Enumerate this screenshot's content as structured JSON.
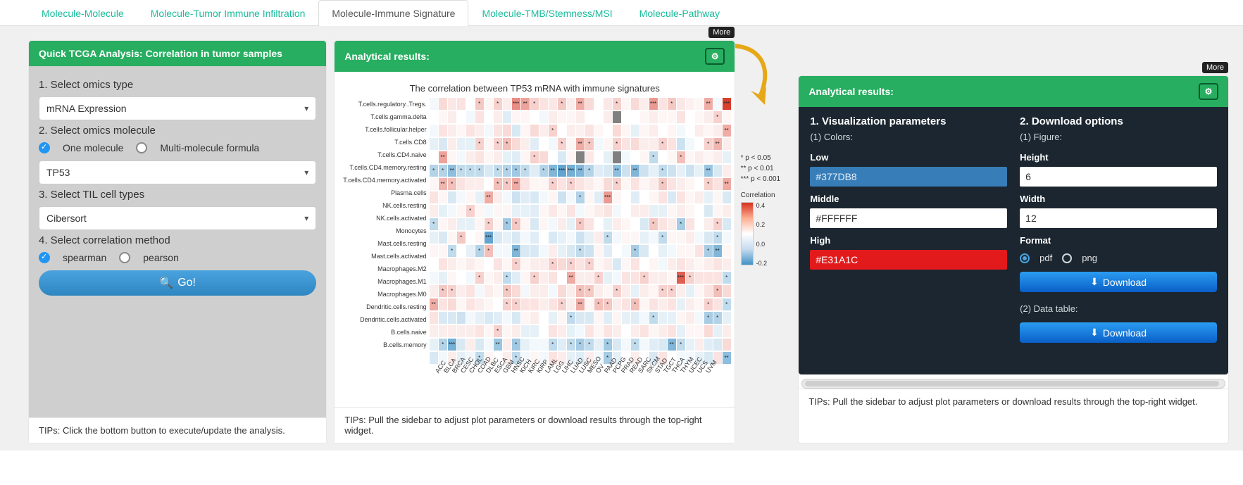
{
  "tabs": {
    "active_index": 2,
    "items": [
      {
        "label": "Molecule-Molecule"
      },
      {
        "label": "Molecule-Tumor Immune Infiltration"
      },
      {
        "label": "Molecule-Immune Signature"
      },
      {
        "label": "Molecule-TMB/Stemness/MSI"
      },
      {
        "label": "Molecule-Pathway"
      }
    ]
  },
  "left_panel": {
    "title": "Quick TCGA Analysis: Correlation in tumor samples",
    "step1_label": "1. Select omics type",
    "omics_type": "mRNA Expression",
    "step2_label": "2. Select omics molecule",
    "mol_radio": {
      "one": "One molecule",
      "multi": "Multi-molecule formula",
      "selected": "one"
    },
    "molecule": "TP53",
    "step3_label": "3. Select TIL cell types",
    "til": "Cibersort",
    "step4_label": "4. Select correlation method",
    "corr_radio": {
      "spearman": "spearman",
      "pearson": "pearson",
      "selected": "spearman"
    },
    "go": "Go!",
    "tip": "TIPs: Click the bottom button to execute/update the analysis."
  },
  "mid_panel": {
    "title": "Analytical results:",
    "more_badge": "More",
    "tip": "TIPs: Pull the sidebar to adjust plot parameters or download results through the top-right widget.",
    "heatmap": {
      "type": "heatmap",
      "title": "The correlation between TP53 mRNA with immune signatures",
      "rows": [
        "T.cells.regulatory..Tregs.",
        "T.cells.gamma.delta",
        "T.cells.follicular.helper",
        "T.cells.CD8",
        "T.cells.CD4.naive",
        "T.cells.CD4.memory.resting",
        "T.cells.CD4.memory.activated",
        "Plasma.cells",
        "NK.cells.resting",
        "NK.cells.activated",
        "Monocytes",
        "Mast.cells.resting",
        "Mast.cells.activated",
        "Macrophages.M2",
        "Macrophages.M1",
        "Macrophages.M0",
        "Dendritic.cells.resting",
        "Dendritic.cells.activated",
        "B.cells.naive",
        "B.cells.memory"
      ],
      "cols": [
        "ACC",
        "BLCA",
        "BRCA",
        "CESC",
        "CHOL",
        "COAD",
        "DLBC",
        "ESCA",
        "GBM",
        "HNSC",
        "KICH",
        "KIRC",
        "KIRP",
        "LAML",
        "LGG",
        "LIHC",
        "LUAD",
        "LUSC",
        "MESO",
        "OV",
        "PAAD",
        "PCPG",
        "PRAD",
        "READ",
        "SARC",
        "SKCM",
        "STAD",
        "TGCT",
        "THCA",
        "THYM",
        "UCEC",
        "UCS",
        "UVM"
      ],
      "values": [
        [
          -0.02,
          0.08,
          0.05,
          0.06,
          0.0,
          0.12,
          0.02,
          0.1,
          0.04,
          0.25,
          0.2,
          0.1,
          0.06,
          0.05,
          0.12,
          0.04,
          0.18,
          0.08,
          0.0,
          0.05,
          0.1,
          0.02,
          0.08,
          0.04,
          0.22,
          0.06,
          0.12,
          0.05,
          0.03,
          0.02,
          0.18,
          -0.02,
          0.42
        ],
        [
          0.0,
          0.02,
          0.04,
          0.0,
          -0.02,
          0.06,
          0.0,
          0.04,
          -0.05,
          0.02,
          0.02,
          0.0,
          -0.02,
          0.04,
          0.02,
          0.02,
          0.04,
          0.0,
          0.0,
          0.04,
          null,
          0.0,
          0.0,
          0.02,
          0.04,
          0.02,
          0.02,
          0.06,
          0.0,
          0.02,
          0.04,
          0.1,
          0.02
        ],
        [
          -0.02,
          0.06,
          0.04,
          0.02,
          0.06,
          0.04,
          -0.02,
          0.06,
          0.08,
          -0.06,
          0.02,
          0.08,
          0.04,
          0.1,
          0.0,
          0.04,
          0.03,
          0.06,
          0.02,
          0.0,
          0.08,
          0.02,
          -0.04,
          0.02,
          0.04,
          0.0,
          0.02,
          -0.02,
          0.0,
          0.04,
          0.02,
          0.04,
          0.18
        ],
        [
          -0.04,
          -0.06,
          0.04,
          -0.04,
          -0.04,
          0.1,
          0.02,
          0.1,
          0.14,
          0.08,
          0.04,
          -0.05,
          0.0,
          -0.02,
          0.1,
          0.02,
          0.18,
          0.12,
          -0.02,
          0.02,
          0.1,
          0.06,
          0.08,
          0.04,
          0.04,
          0.1,
          0.06,
          -0.08,
          -0.02,
          0.0,
          0.1,
          0.16,
          0.04
        ],
        [
          0.0,
          0.2,
          0.02,
          -0.02,
          0.04,
          0.06,
          0.02,
          0.04,
          -0.04,
          -0.05,
          0.02,
          0.1,
          0.08,
          0.0,
          -0.06,
          0.02,
          null,
          0.05,
          0.0,
          -0.04,
          null,
          -0.02,
          0.0,
          0.02,
          -0.1,
          0.0,
          0.02,
          0.14,
          0.02,
          0.04,
          0.02,
          0.04,
          -0.04
        ],
        [
          -0.12,
          -0.12,
          -0.18,
          -0.1,
          -0.1,
          -0.1,
          -0.06,
          -0.1,
          -0.12,
          -0.15,
          -0.1,
          -0.05,
          -0.12,
          -0.2,
          -0.25,
          -0.22,
          -0.2,
          -0.12,
          -0.05,
          -0.06,
          -0.18,
          -0.08,
          -0.2,
          -0.08,
          -0.04,
          -0.1,
          -0.08,
          -0.04,
          -0.08,
          -0.04,
          -0.16,
          -0.06,
          0.04
        ],
        [
          0.02,
          0.16,
          0.14,
          0.06,
          0.04,
          0.04,
          0.0,
          0.14,
          0.12,
          0.18,
          0.06,
          0.02,
          0.02,
          0.1,
          0.06,
          0.1,
          0.06,
          0.04,
          0.02,
          0.08,
          0.1,
          0.02,
          0.06,
          0.02,
          0.04,
          0.12,
          0.06,
          0.04,
          0.02,
          0.0,
          0.1,
          0.06,
          0.18
        ],
        [
          0.06,
          0.02,
          -0.06,
          -0.02,
          0.02,
          -0.04,
          0.18,
          0.04,
          -0.02,
          -0.08,
          -0.05,
          -0.06,
          -0.02,
          0.02,
          -0.08,
          -0.02,
          -0.12,
          0.02,
          -0.05,
          0.22,
          0.02,
          0.0,
          -0.05,
          0.0,
          0.02,
          0.06,
          -0.06,
          0.06,
          0.02,
          0.04,
          -0.04,
          0.02,
          -0.06
        ],
        [
          0.04,
          -0.04,
          -0.02,
          0.02,
          0.1,
          0.02,
          -0.02,
          0.02,
          0.02,
          -0.04,
          -0.04,
          -0.05,
          0.02,
          0.05,
          0.02,
          0.06,
          -0.02,
          0.02,
          0.04,
          0.06,
          -0.02,
          0.0,
          0.04,
          0.04,
          -0.04,
          -0.04,
          0.02,
          0.04,
          0.02,
          0.0,
          -0.06,
          0.02,
          0.04
        ],
        [
          -0.1,
          0.02,
          0.04,
          -0.04,
          -0.04,
          0.02,
          0.1,
          0.02,
          -0.15,
          0.12,
          0.02,
          -0.06,
          0.02,
          -0.02,
          0.04,
          -0.04,
          0.12,
          0.06,
          0.0,
          -0.04,
          0.04,
          0.02,
          0.0,
          -0.06,
          0.12,
          0.06,
          0.04,
          -0.14,
          0.06,
          0.0,
          0.04,
          0.1,
          -0.06
        ],
        [
          -0.04,
          -0.06,
          0.02,
          0.12,
          0.0,
          0.02,
          -0.25,
          -0.06,
          -0.04,
          -0.06,
          -0.02,
          -0.05,
          0.0,
          -0.06,
          -0.04,
          -0.02,
          -0.08,
          -0.04,
          0.04,
          -0.1,
          -0.02,
          0.02,
          0.02,
          -0.04,
          -0.02,
          -0.1,
          0.02,
          0.02,
          0.04,
          -0.02,
          -0.06,
          -0.1,
          -0.02
        ],
        [
          0.02,
          0.02,
          -0.1,
          0.0,
          -0.04,
          -0.12,
          0.14,
          -0.02,
          -0.02,
          -0.2,
          -0.06,
          -0.06,
          -0.02,
          0.04,
          -0.04,
          -0.06,
          -0.1,
          -0.08,
          0.02,
          -0.05,
          0.0,
          -0.02,
          -0.14,
          -0.06,
          0.0,
          -0.04,
          -0.02,
          0.02,
          0.02,
          0.06,
          -0.14,
          -0.2,
          0.02
        ],
        [
          0.0,
          0.06,
          0.04,
          0.02,
          0.04,
          0.02,
          0.0,
          0.06,
          0.02,
          0.1,
          0.02,
          0.04,
          0.04,
          0.1,
          0.08,
          0.1,
          0.06,
          0.1,
          0.02,
          0.04,
          -0.06,
          0.02,
          0.06,
          0.0,
          0.02,
          -0.02,
          0.04,
          0.06,
          0.04,
          0.02,
          0.04,
          0.06,
          0.04
        ],
        [
          -0.02,
          -0.04,
          0.02,
          0.0,
          -0.02,
          0.1,
          0.02,
          0.04,
          -0.1,
          -0.05,
          0.02,
          0.1,
          0.04,
          0.06,
          0.0,
          0.18,
          0.04,
          0.04,
          0.1,
          -0.04,
          -0.02,
          0.06,
          0.06,
          0.1,
          0.04,
          0.04,
          0.02,
          0.35,
          0.1,
          0.06,
          0.06,
          0.06,
          -0.1
        ],
        [
          0.04,
          0.12,
          0.1,
          0.04,
          0.06,
          -0.02,
          0.04,
          0.02,
          0.12,
          0.08,
          -0.02,
          0.04,
          0.04,
          -0.02,
          0.08,
          0.04,
          0.14,
          0.12,
          0.04,
          0.02,
          0.1,
          0.04,
          -0.04,
          0.04,
          0.02,
          0.1,
          0.1,
          0.04,
          -0.04,
          0.02,
          0.06,
          0.14,
          0.08
        ],
        [
          0.18,
          0.06,
          0.08,
          0.02,
          0.06,
          0.04,
          0.02,
          0.0,
          0.1,
          0.1,
          0.06,
          0.06,
          0.04,
          0.06,
          0.1,
          0.04,
          0.18,
          0.02,
          0.14,
          0.12,
          0.04,
          0.06,
          0.14,
          0.02,
          0.06,
          0.04,
          0.06,
          -0.04,
          0.04,
          0.02,
          0.1,
          0.06,
          -0.1
        ],
        [
          0.06,
          -0.06,
          -0.06,
          -0.08,
          -0.02,
          -0.04,
          -0.06,
          -0.05,
          -0.02,
          -0.06,
          0.02,
          0.04,
          0.0,
          -0.04,
          0.02,
          -0.1,
          -0.06,
          -0.06,
          0.02,
          -0.05,
          0.02,
          -0.04,
          -0.05,
          -0.02,
          -0.1,
          -0.04,
          -0.04,
          0.02,
          0.04,
          -0.02,
          -0.14,
          -0.12,
          -0.04
        ],
        [
          0.04,
          0.04,
          0.04,
          0.04,
          0.04,
          0.06,
          0.02,
          0.1,
          0.02,
          0.04,
          -0.04,
          -0.04,
          0.0,
          0.06,
          0.04,
          -0.04,
          -0.02,
          0.06,
          0.02,
          0.06,
          0.04,
          0.0,
          0.04,
          0.06,
          0.02,
          0.04,
          0.06,
          -0.04,
          0.02,
          0.02,
          0.08,
          -0.04,
          0.04
        ],
        [
          -0.04,
          -0.12,
          -0.22,
          -0.06,
          0.04,
          -0.06,
          -0.02,
          -0.16,
          0.04,
          -0.15,
          -0.04,
          -0.02,
          -0.02,
          -0.1,
          -0.05,
          -0.1,
          -0.14,
          -0.1,
          -0.04,
          -0.15,
          -0.06,
          -0.02,
          -0.1,
          -0.02,
          -0.05,
          -0.06,
          -0.2,
          -0.1,
          -0.04,
          0.04,
          -0.05,
          -0.06,
          0.08
        ],
        [
          -0.06,
          -0.02,
          0.04,
          -0.04,
          -0.02,
          -0.1,
          0.02,
          0.0,
          0.04,
          -0.1,
          -0.02,
          0.02,
          -0.02,
          0.06,
          0.04,
          -0.04,
          -0.05,
          0.04,
          -0.02,
          -0.14,
          -0.04,
          0.0,
          0.04,
          0.0,
          -0.06,
          0.06,
          0.0,
          -0.02,
          -0.02,
          -0.04,
          -0.06,
          0.06,
          -0.18
        ]
      ],
      "sig_p005": 0.1,
      "sig_p001": 0.16,
      "sig_p0001": 0.22,
      "color_low": "#4292c6",
      "color_mid": "#ffffff",
      "color_high": "#d7301f",
      "color_na": "#808080",
      "legend": {
        "p1": "* p < 0.05",
        "p2": "** p < 0.01",
        "p3": "*** p < 0.001",
        "title": "Correlation",
        "ticks": [
          "0.4",
          "0.2",
          "0.0",
          "-0.2"
        ]
      }
    }
  },
  "right_panel": {
    "more_badge": "More",
    "title": "Analytical results:",
    "left_h": "1. Visualization parameters",
    "left_sub": "(1) Colors:",
    "low_label": "Low",
    "low_value": "#377DB8",
    "mid_label": "Middle",
    "mid_value": "#FFFFFF",
    "high_label": "High",
    "high_value": "#E31A1C",
    "right_h": "2. Download options",
    "right_sub": "(1) Figure:",
    "height_label": "Height",
    "height_value": "6",
    "width_label": "Width",
    "width_value": "12",
    "format_label": "Format",
    "format_pdf": "pdf",
    "format_png": "png",
    "format_selected": "pdf",
    "download": "Download",
    "sub2": "(2) Data table:",
    "tip": "TIPs: Pull the sidebar to adjust plot parameters or download results through the top-right widget."
  }
}
